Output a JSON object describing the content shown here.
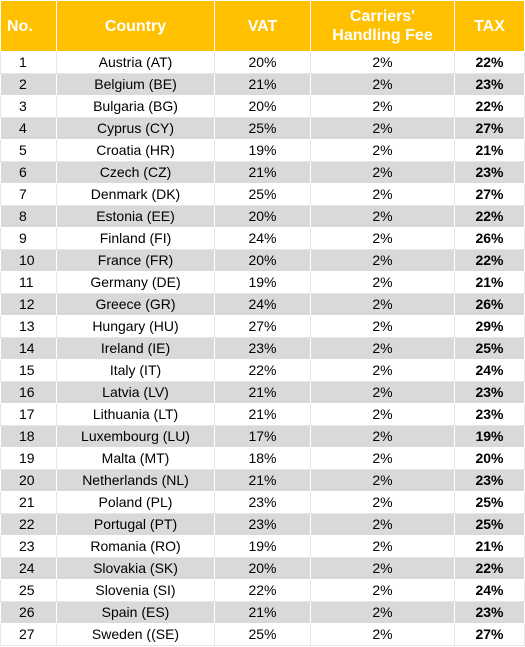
{
  "headers": {
    "no": "No.",
    "country": "Country",
    "vat": "VAT",
    "fee_line1": "Carriers'",
    "fee_line2": "Handling Fee",
    "tax": "TAX"
  },
  "rows": [
    {
      "no": "1",
      "country": "Austria (AT)",
      "vat": "20%",
      "fee": "2%",
      "tax": "22%"
    },
    {
      "no": "2",
      "country": "Belgium (BE)",
      "vat": "21%",
      "fee": "2%",
      "tax": "23%"
    },
    {
      "no": "3",
      "country": "Bulgaria (BG)",
      "vat": "20%",
      "fee": "2%",
      "tax": "22%"
    },
    {
      "no": "4",
      "country": "Cyprus (CY)",
      "vat": "25%",
      "fee": "2%",
      "tax": "27%"
    },
    {
      "no": "5",
      "country": "Croatia (HR)",
      "vat": "19%",
      "fee": "2%",
      "tax": "21%"
    },
    {
      "no": "6",
      "country": "Czech (CZ)",
      "vat": "21%",
      "fee": "2%",
      "tax": "23%"
    },
    {
      "no": "7",
      "country": "Denmark (DK)",
      "vat": "25%",
      "fee": "2%",
      "tax": "27%"
    },
    {
      "no": "8",
      "country": "Estonia (EE)",
      "vat": "20%",
      "fee": "2%",
      "tax": "22%"
    },
    {
      "no": "9",
      "country": "Finland (FI)",
      "vat": "24%",
      "fee": "2%",
      "tax": "26%"
    },
    {
      "no": "10",
      "country": "France (FR)",
      "vat": "20%",
      "fee": "2%",
      "tax": "22%"
    },
    {
      "no": "11",
      "country": "Germany (DE)",
      "vat": "19%",
      "fee": "2%",
      "tax": "21%"
    },
    {
      "no": "12",
      "country": "Greece (GR)",
      "vat": "24%",
      "fee": "2%",
      "tax": "26%"
    },
    {
      "no": "13",
      "country": "Hungary (HU)",
      "vat": "27%",
      "fee": "2%",
      "tax": "29%"
    },
    {
      "no": "14",
      "country": "Ireland (IE)",
      "vat": "23%",
      "fee": "2%",
      "tax": "25%"
    },
    {
      "no": "15",
      "country": "Italy (IT)",
      "vat": "22%",
      "fee": "2%",
      "tax": "24%"
    },
    {
      "no": "16",
      "country": "Latvia (LV)",
      "vat": "21%",
      "fee": "2%",
      "tax": "23%"
    },
    {
      "no": "17",
      "country": "Lithuania (LT)",
      "vat": "21%",
      "fee": "2%",
      "tax": "23%"
    },
    {
      "no": "18",
      "country": "Luxembourg (LU)",
      "vat": "17%",
      "fee": "2%",
      "tax": "19%"
    },
    {
      "no": "19",
      "country": "Malta (MT)",
      "vat": "18%",
      "fee": "2%",
      "tax": "20%"
    },
    {
      "no": "20",
      "country": "Netherlands (NL)",
      "vat": "21%",
      "fee": "2%",
      "tax": "23%"
    },
    {
      "no": "21",
      "country": "Poland (PL)",
      "vat": "23%",
      "fee": "2%",
      "tax": "25%"
    },
    {
      "no": "22",
      "country": "Portugal (PT)",
      "vat": "23%",
      "fee": "2%",
      "tax": "25%"
    },
    {
      "no": "23",
      "country": "Romania (RO)",
      "vat": "19%",
      "fee": "2%",
      "tax": "21%"
    },
    {
      "no": "24",
      "country": "Slovakia (SK)",
      "vat": "20%",
      "fee": "2%",
      "tax": "22%"
    },
    {
      "no": "25",
      "country": "Slovenia (SI)",
      "vat": "22%",
      "fee": "2%",
      "tax": "24%"
    },
    {
      "no": "26",
      "country": "Spain (ES)",
      "vat": "21%",
      "fee": "2%",
      "tax": "23%"
    },
    {
      "no": "27",
      "country": "Sweden ((SE)",
      "vat": "25%",
      "fee": "2%",
      "tax": "27%"
    }
  ],
  "colors": {
    "header_bg": "#ffc000",
    "header_text": "#ffffff",
    "stripe": "#d9d9d9"
  }
}
